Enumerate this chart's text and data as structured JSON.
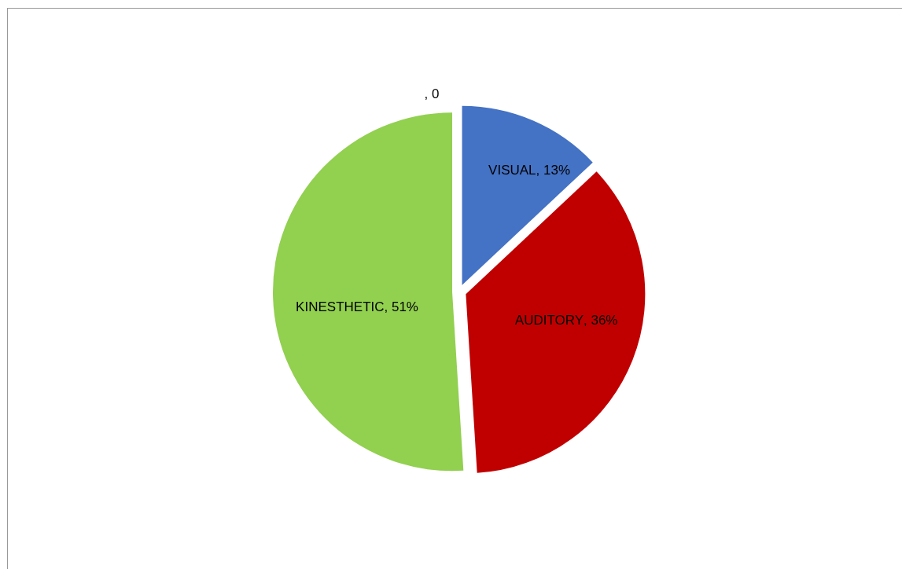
{
  "chart_data": {
    "type": "pie",
    "categories": [
      "VISUAL",
      "AUDITORY",
      "KINESTHETIC",
      null
    ],
    "values": [
      13,
      36,
      51,
      0
    ],
    "colors": [
      "#4472c4",
      "#c00000",
      "#92d050",
      null
    ],
    "value_labels": [
      ", 13%",
      ", 36%",
      ", 51%",
      ", 0"
    ],
    "legend": false
  }
}
